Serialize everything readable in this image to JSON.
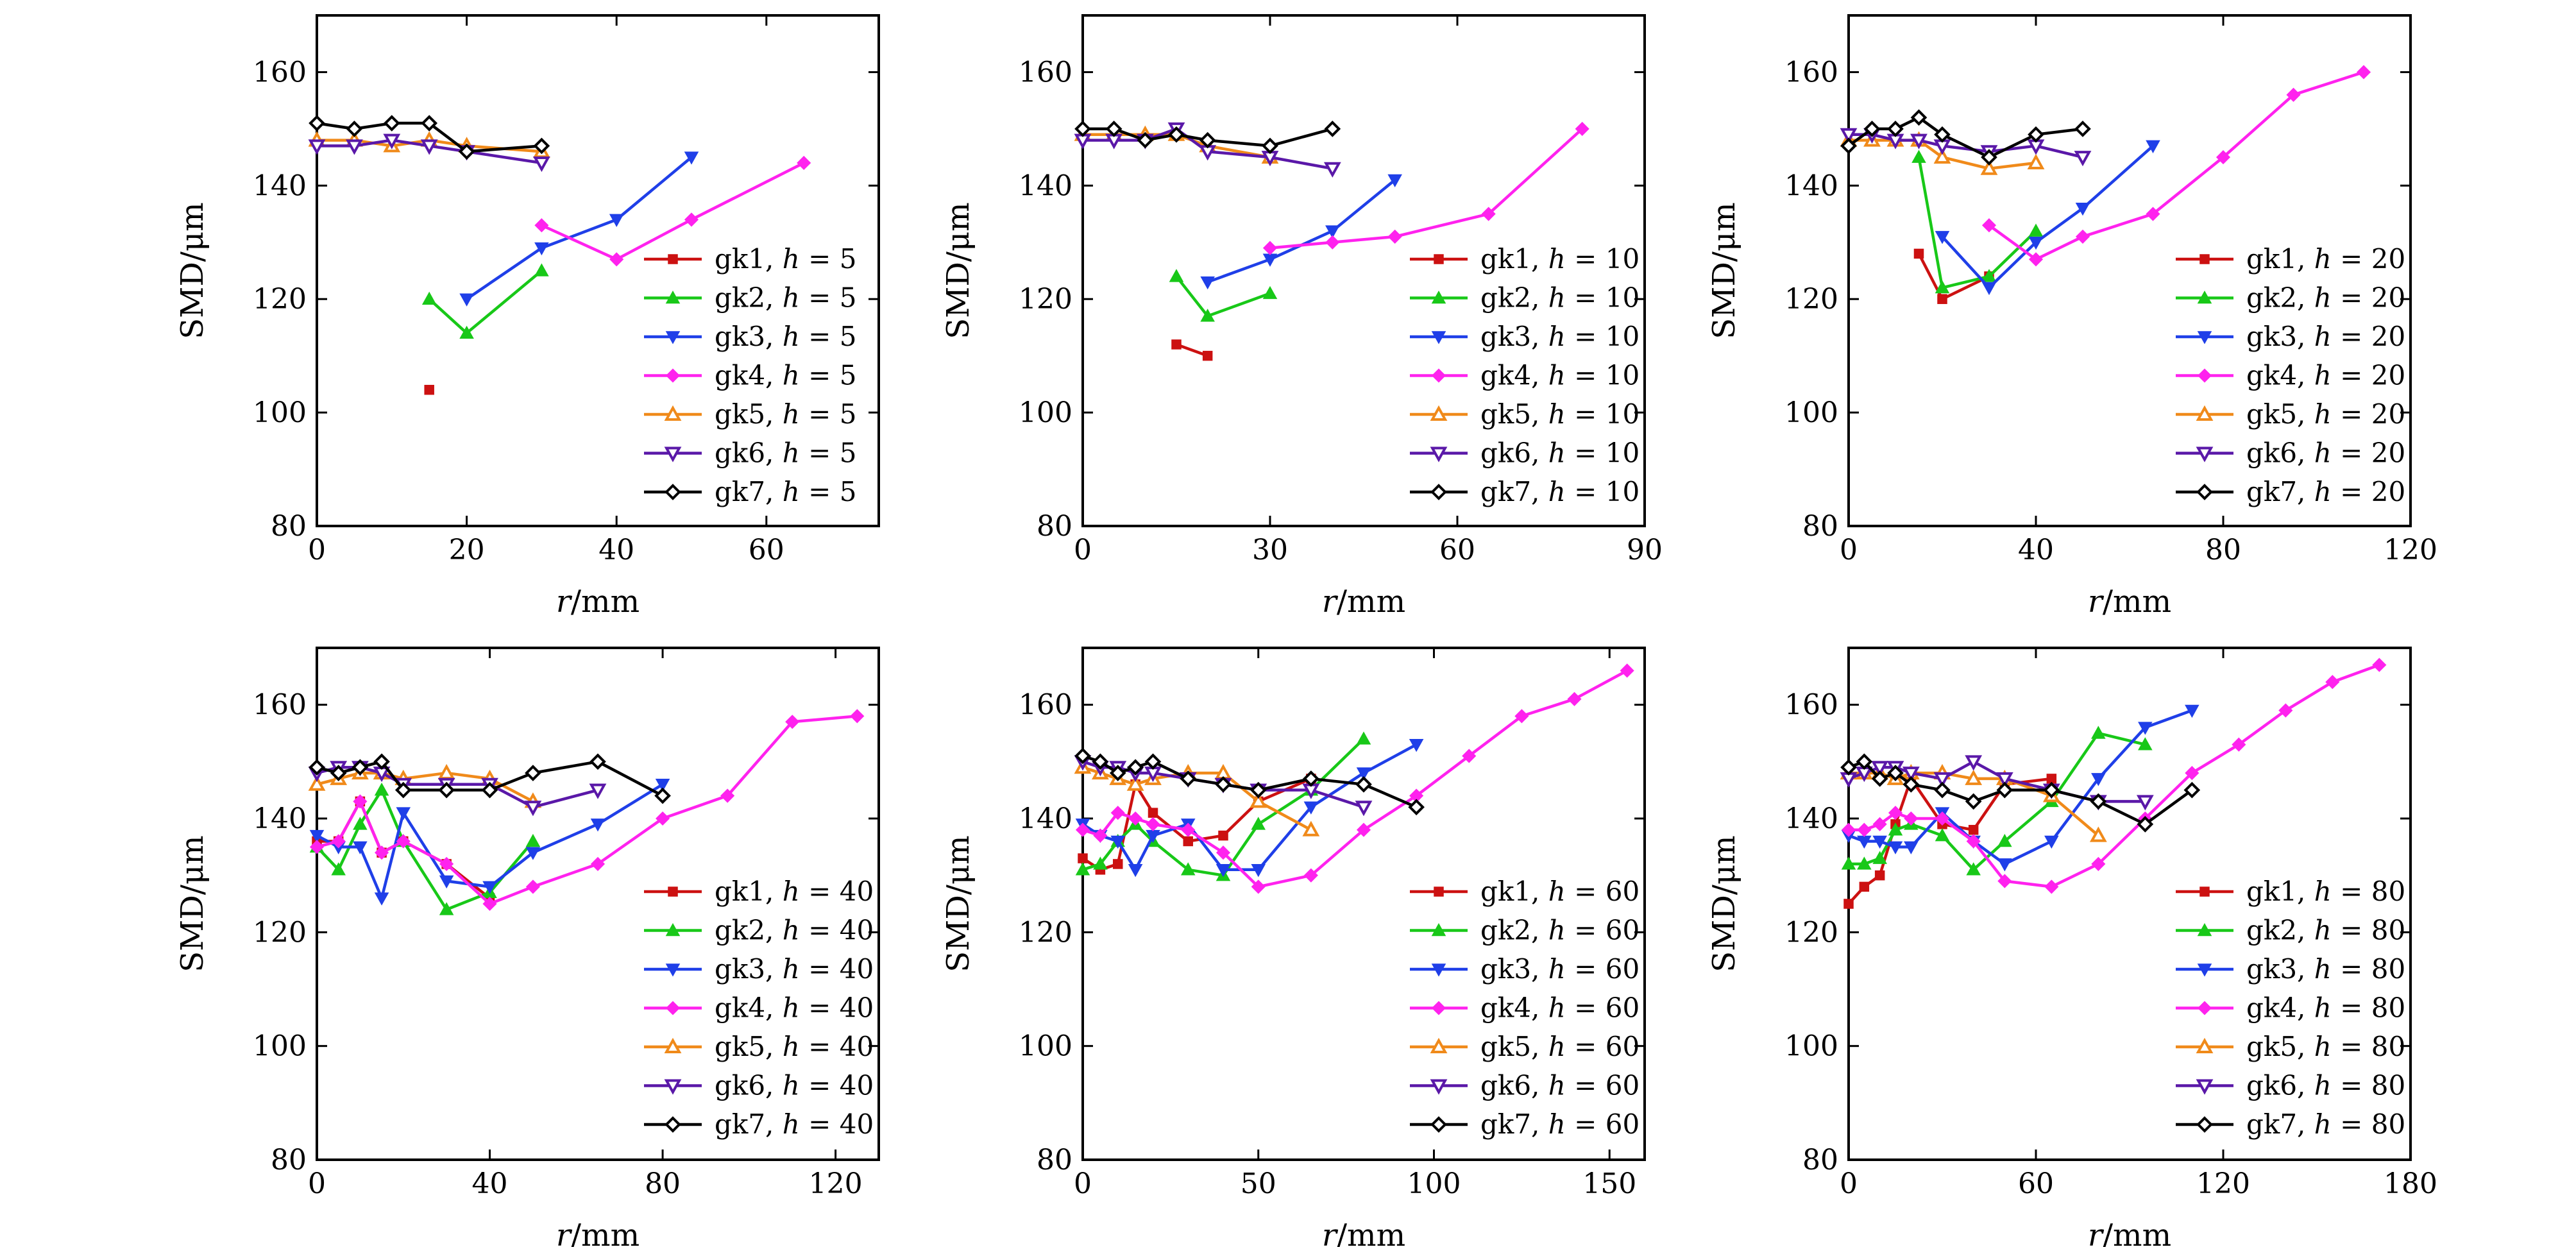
{
  "markers": {
    "gk1": {
      "color": "#cc1111",
      "symbol": "square",
      "filled": true
    },
    "gk2": {
      "color": "#18c818",
      "symbol": "triangle-up",
      "filled": true
    },
    "gk3": {
      "color": "#1f3fe8",
      "symbol": "triangle-down",
      "filled": true
    },
    "gk4": {
      "color": "#ff22ee",
      "symbol": "diamond",
      "filled": true
    },
    "gk5": {
      "color": "#f08a1a",
      "symbol": "triangle-up",
      "filled": false
    },
    "gk6": {
      "color": "#5a18a8",
      "symbol": "triangle-down",
      "filled": false
    },
    "gk7": {
      "color": "#000000",
      "symbol": "diamond",
      "filled": false
    }
  },
  "chart_data": [
    {
      "type": "line",
      "grid": false,
      "legend": "right",
      "xlabel": "r/mm",
      "ylabel": "SMD/μm",
      "xlim": [
        0,
        75
      ],
      "ylim": [
        80,
        170
      ],
      "xticks": [
        0,
        20,
        40,
        60
      ],
      "yticks": [
        80,
        100,
        120,
        140,
        160
      ],
      "series": [
        {
          "name": "gk1, h = 5",
          "x": [
            15
          ],
          "y": [
            104
          ]
        },
        {
          "name": "gk2, h = 5",
          "x": [
            15,
            20,
            30
          ],
          "y": [
            120,
            114,
            125
          ]
        },
        {
          "name": "gk3, h = 5",
          "x": [
            20,
            30,
            40,
            50
          ],
          "y": [
            120,
            129,
            134,
            145
          ]
        },
        {
          "name": "gk4, h = 5",
          "x": [
            30,
            40,
            50,
            65
          ],
          "y": [
            133,
            127,
            134,
            144
          ]
        },
        {
          "name": "gk5, h = 5",
          "x": [
            0,
            5,
            10,
            15,
            20,
            30
          ],
          "y": [
            148,
            148,
            147,
            148,
            147,
            146
          ]
        },
        {
          "name": "gk6, h = 5",
          "x": [
            0,
            5,
            10,
            15,
            20,
            30
          ],
          "y": [
            147,
            147,
            148,
            147,
            146,
            144
          ]
        },
        {
          "name": "gk7, h = 5",
          "x": [
            0,
            5,
            10,
            15,
            20,
            30
          ],
          "y": [
            151,
            150,
            151,
            151,
            146,
            147
          ]
        }
      ]
    },
    {
      "type": "line",
      "grid": false,
      "legend": "right",
      "xlabel": "r/mm",
      "ylabel": "SMD/μm",
      "xlim": [
        0,
        90
      ],
      "ylim": [
        80,
        170
      ],
      "xticks": [
        0,
        30,
        60,
        90
      ],
      "yticks": [
        80,
        100,
        120,
        140,
        160
      ],
      "series": [
        {
          "name": "gk1, h = 10",
          "x": [
            15,
            20
          ],
          "y": [
            112,
            110
          ]
        },
        {
          "name": "gk2, h = 10",
          "x": [
            15,
            20,
            30
          ],
          "y": [
            124,
            117,
            121
          ]
        },
        {
          "name": "gk3, h = 10",
          "x": [
            20,
            30,
            40,
            50
          ],
          "y": [
            123,
            127,
            132,
            141
          ]
        },
        {
          "name": "gk4, h = 10",
          "x": [
            30,
            40,
            50,
            65,
            80
          ],
          "y": [
            129,
            130,
            131,
            135,
            150
          ]
        },
        {
          "name": "gk5, h = 10",
          "x": [
            0,
            5,
            10,
            15,
            20,
            30
          ],
          "y": [
            149,
            149,
            149,
            149,
            147,
            145
          ]
        },
        {
          "name": "gk6, h = 10",
          "x": [
            0,
            5,
            10,
            15,
            20,
            30,
            40
          ],
          "y": [
            148,
            148,
            148,
            150,
            146,
            145,
            143
          ]
        },
        {
          "name": "gk7, h = 10",
          "x": [
            0,
            5,
            10,
            15,
            20,
            30,
            40
          ],
          "y": [
            150,
            150,
            148,
            149,
            148,
            147,
            150
          ]
        }
      ]
    },
    {
      "type": "line",
      "grid": false,
      "legend": "right",
      "xlabel": "r/mm",
      "ylabel": "SMD/μm",
      "xlim": [
        0,
        120
      ],
      "ylim": [
        80,
        170
      ],
      "xticks": [
        0,
        40,
        80,
        120
      ],
      "yticks": [
        80,
        100,
        120,
        140,
        160
      ],
      "series": [
        {
          "name": "gk1, h = 20",
          "x": [
            15,
            20,
            30
          ],
          "y": [
            128,
            120,
            124
          ]
        },
        {
          "name": "gk2, h = 20",
          "x": [
            15,
            20,
            30,
            40
          ],
          "y": [
            145,
            122,
            124,
            132
          ]
        },
        {
          "name": "gk3, h = 20",
          "x": [
            20,
            30,
            40,
            50,
            65
          ],
          "y": [
            131,
            122,
            130,
            136,
            147
          ]
        },
        {
          "name": "gk4, h = 20",
          "x": [
            30,
            40,
            50,
            65,
            80,
            95,
            110
          ],
          "y": [
            133,
            127,
            131,
            135,
            145,
            156,
            160
          ]
        },
        {
          "name": "gk5, h = 20",
          "x": [
            0,
            5,
            10,
            15,
            20,
            30,
            40
          ],
          "y": [
            148,
            148,
            148,
            148,
            145,
            143,
            144
          ]
        },
        {
          "name": "gk6, h = 20",
          "x": [
            0,
            5,
            10,
            15,
            20,
            30,
            40,
            50
          ],
          "y": [
            149,
            149,
            148,
            148,
            147,
            146,
            147,
            145
          ]
        },
        {
          "name": "gk7, h = 20",
          "x": [
            0,
            5,
            10,
            15,
            20,
            30,
            40,
            50
          ],
          "y": [
            147,
            150,
            150,
            152,
            149,
            145,
            149,
            150
          ]
        }
      ]
    },
    {
      "type": "line",
      "grid": false,
      "legend": "right",
      "xlabel": "r/mm",
      "ylabel": "SMD/μm",
      "xlim": [
        0,
        130
      ],
      "ylim": [
        80,
        170
      ],
      "xticks": [
        0,
        40,
        80,
        120
      ],
      "yticks": [
        80,
        100,
        120,
        140,
        160
      ],
      "series": [
        {
          "name": "gk1, h = 40",
          "x": [
            0,
            5,
            10,
            15,
            20,
            30,
            40
          ],
          "y": [
            136,
            136,
            143,
            134,
            136,
            132,
            126
          ]
        },
        {
          "name": "gk2, h = 40",
          "x": [
            0,
            5,
            10,
            15,
            20,
            30,
            40,
            50
          ],
          "y": [
            135,
            131,
            139,
            145,
            136,
            124,
            127,
            136
          ]
        },
        {
          "name": "gk3, h = 40",
          "x": [
            0,
            5,
            10,
            15,
            20,
            30,
            40,
            50,
            65,
            80
          ],
          "y": [
            137,
            135,
            135,
            126,
            141,
            129,
            128,
            134,
            139,
            146
          ]
        },
        {
          "name": "gk4, h = 40",
          "x": [
            0,
            5,
            10,
            15,
            20,
            30,
            40,
            50,
            65,
            80,
            95,
            110,
            125
          ],
          "y": [
            135,
            136,
            143,
            134,
            136,
            132,
            125,
            128,
            132,
            140,
            144,
            157,
            158
          ]
        },
        {
          "name": "gk5, h = 40",
          "x": [
            0,
            5,
            10,
            15,
            20,
            30,
            40,
            50
          ],
          "y": [
            146,
            147,
            148,
            148,
            147,
            148,
            147,
            143
          ]
        },
        {
          "name": "gk6, h = 40",
          "x": [
            0,
            5,
            10,
            15,
            20,
            30,
            40,
            50,
            65
          ],
          "y": [
            148,
            149,
            149,
            148,
            146,
            146,
            146,
            142,
            145
          ]
        },
        {
          "name": "gk7, h = 40",
          "x": [
            0,
            5,
            10,
            15,
            20,
            30,
            40,
            50,
            65,
            80
          ],
          "y": [
            149,
            148,
            149,
            150,
            145,
            145,
            145,
            148,
            150,
            144
          ]
        }
      ]
    },
    {
      "type": "line",
      "grid": false,
      "legend": "right",
      "xlabel": "r/mm",
      "ylabel": "SMD/μm",
      "xlim": [
        0,
        160
      ],
      "ylim": [
        80,
        170
      ],
      "xticks": [
        0,
        50,
        100,
        150
      ],
      "yticks": [
        80,
        100,
        120,
        140,
        160
      ],
      "series": [
        {
          "name": "gk1, h = 60",
          "x": [
            0,
            5,
            10,
            15,
            20,
            30,
            40,
            50,
            65
          ],
          "y": [
            133,
            131,
            132,
            146,
            141,
            136,
            137,
            143,
            147
          ]
        },
        {
          "name": "gk2, h = 60",
          "x": [
            0,
            5,
            10,
            15,
            20,
            30,
            40,
            50,
            65,
            80
          ],
          "y": [
            131,
            132,
            136,
            139,
            136,
            131,
            130,
            139,
            145,
            154
          ]
        },
        {
          "name": "gk3, h = 60",
          "x": [
            0,
            5,
            10,
            15,
            20,
            30,
            40,
            50,
            65,
            80,
            95
          ],
          "y": [
            139,
            137,
            136,
            131,
            137,
            139,
            131,
            131,
            142,
            148,
            153
          ]
        },
        {
          "name": "gk4, h = 60",
          "x": [
            0,
            5,
            10,
            15,
            20,
            30,
            40,
            50,
            65,
            80,
            95,
            110,
            125,
            140,
            155
          ],
          "y": [
            138,
            137,
            141,
            140,
            139,
            138,
            134,
            128,
            130,
            138,
            144,
            151,
            158,
            161,
            166
          ]
        },
        {
          "name": "gk5, h = 60",
          "x": [
            0,
            5,
            10,
            15,
            20,
            30,
            40,
            50,
            65
          ],
          "y": [
            149,
            148,
            147,
            146,
            147,
            148,
            148,
            143,
            138
          ]
        },
        {
          "name": "gk6, h = 60",
          "x": [
            0,
            5,
            10,
            15,
            20,
            30,
            40,
            50,
            65,
            80
          ],
          "y": [
            150,
            149,
            149,
            148,
            148,
            147,
            146,
            145,
            145,
            142
          ]
        },
        {
          "name": "gk7, h = 60",
          "x": [
            0,
            5,
            10,
            15,
            20,
            30,
            40,
            50,
            65,
            80,
            95
          ],
          "y": [
            151,
            150,
            148,
            149,
            150,
            147,
            146,
            145,
            147,
            146,
            142
          ]
        }
      ]
    },
    {
      "type": "line",
      "grid": false,
      "legend": "right",
      "xlabel": "r/mm",
      "ylabel": "SMD/μm",
      "xlim": [
        0,
        180
      ],
      "ylim": [
        80,
        170
      ],
      "xticks": [
        0,
        60,
        120,
        180
      ],
      "yticks": [
        80,
        100,
        120,
        140,
        160
      ],
      "series": [
        {
          "name": "gk1, h = 80",
          "x": [
            0,
            5,
            10,
            15,
            20,
            30,
            40,
            50,
            65
          ],
          "y": [
            125,
            128,
            130,
            139,
            147,
            139,
            138,
            146,
            147
          ]
        },
        {
          "name": "gk2, h = 80",
          "x": [
            0,
            5,
            10,
            15,
            20,
            30,
            40,
            50,
            65,
            80,
            95
          ],
          "y": [
            132,
            132,
            133,
            138,
            139,
            137,
            131,
            136,
            143,
            155,
            153
          ]
        },
        {
          "name": "gk3, h = 80",
          "x": [
            0,
            5,
            10,
            15,
            20,
            30,
            40,
            50,
            65,
            80,
            95,
            110
          ],
          "y": [
            137,
            136,
            136,
            135,
            135,
            141,
            136,
            132,
            136,
            147,
            156,
            159
          ]
        },
        {
          "name": "gk4, h = 80",
          "x": [
            0,
            5,
            10,
            15,
            20,
            30,
            40,
            50,
            65,
            80,
            95,
            110,
            125,
            140,
            155,
            170
          ],
          "y": [
            138,
            138,
            139,
            141,
            140,
            140,
            136,
            129,
            128,
            132,
            140,
            148,
            153,
            159,
            164,
            167
          ]
        },
        {
          "name": "gk5, h = 80",
          "x": [
            0,
            5,
            10,
            15,
            20,
            30,
            40,
            50,
            65,
            80
          ],
          "y": [
            148,
            148,
            148,
            147,
            148,
            148,
            147,
            147,
            144,
            137
          ]
        },
        {
          "name": "gk6, h = 80",
          "x": [
            0,
            5,
            10,
            15,
            20,
            30,
            40,
            50,
            65,
            80,
            95
          ],
          "y": [
            147,
            148,
            149,
            149,
            148,
            147,
            150,
            147,
            145,
            143,
            143
          ]
        },
        {
          "name": "gk7, h = 80",
          "x": [
            0,
            5,
            10,
            15,
            20,
            30,
            40,
            50,
            65,
            80,
            95,
            110
          ],
          "y": [
            149,
            150,
            147,
            148,
            146,
            145,
            143,
            145,
            145,
            143,
            139,
            145
          ]
        }
      ]
    }
  ]
}
